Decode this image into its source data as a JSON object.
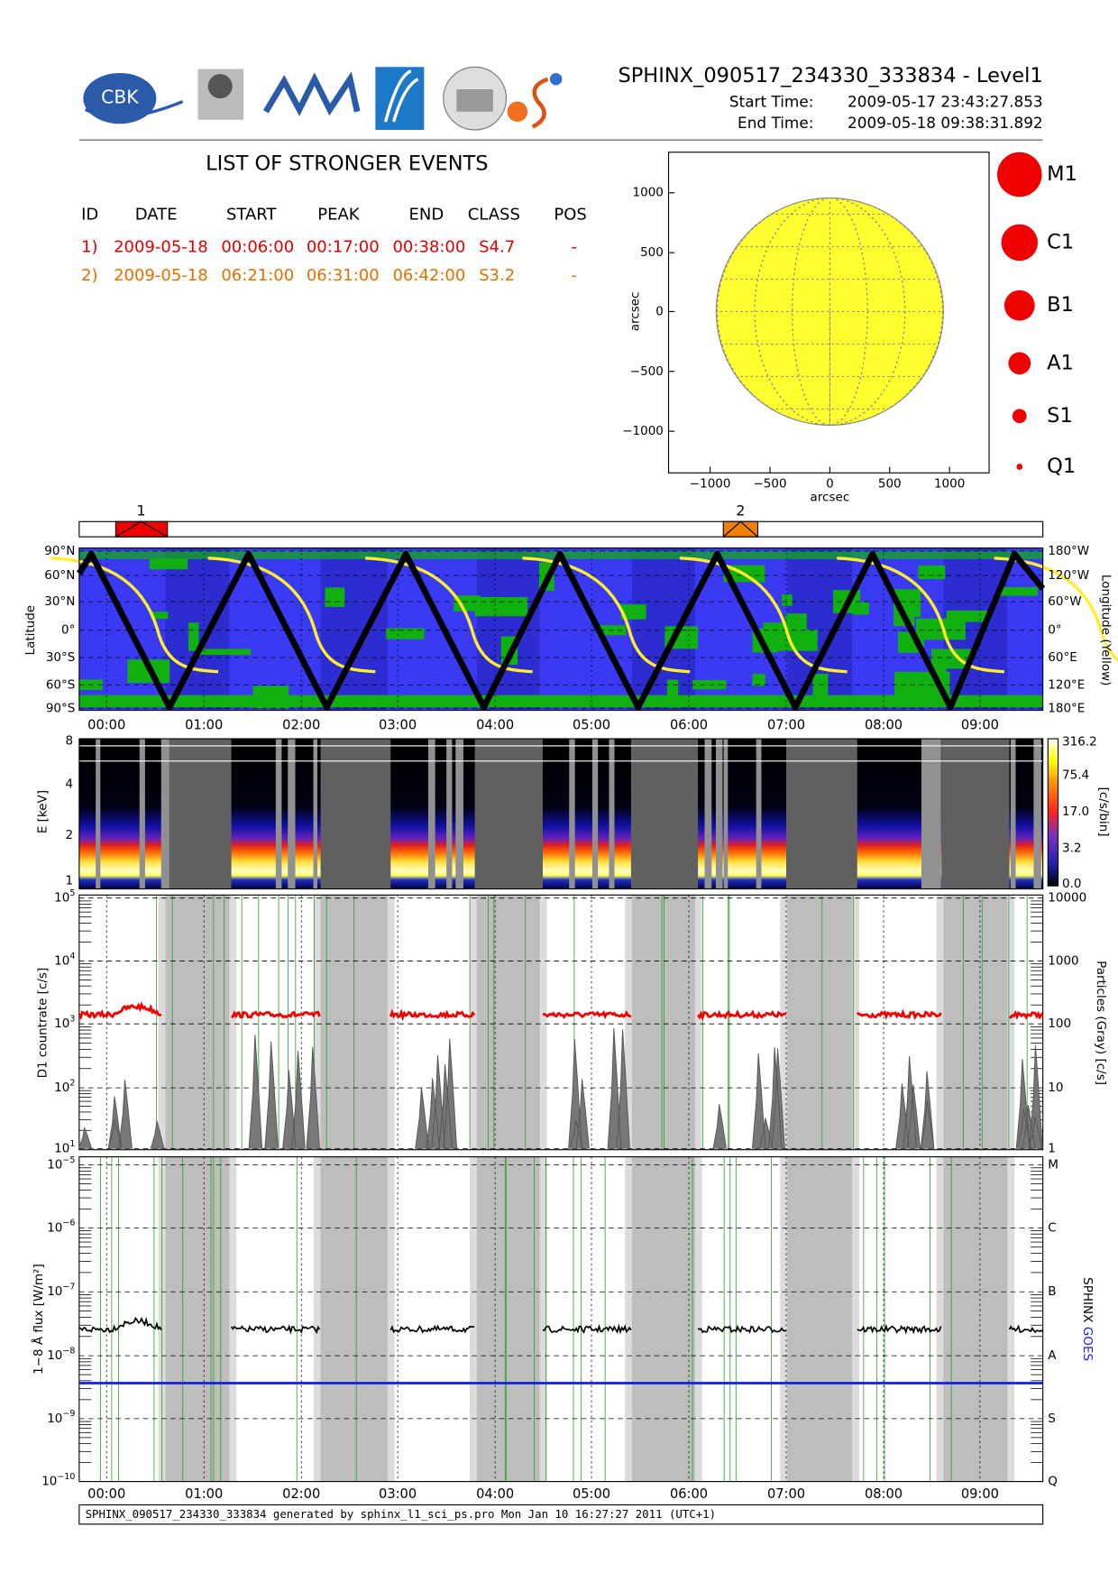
{
  "header": {
    "logo_text": "CBK",
    "title": "SPHINX_090517_234330_333834 - Level1",
    "start_label": "Start Time:",
    "start": "2009-05-17   23:43:27.853",
    "end_label": "End Time:",
    "end": "2009-05-18   09:38:31.892"
  },
  "events": {
    "title": "LIST OF STRONGER EVENTS",
    "columns": [
      "ID",
      "DATE",
      "START",
      "PEAK",
      "END",
      "CLASS",
      "POS"
    ],
    "rows": [
      [
        "1)",
        "2009-05-18",
        "00:06:00",
        "00:17:00",
        "00:38:00",
        "S4.7",
        "-"
      ],
      [
        "2)",
        "2009-05-18",
        "06:21:00",
        "06:31:00",
        "06:42:00",
        "S3.2",
        "-"
      ]
    ]
  },
  "sun_map": {
    "xlabel": "arcsec",
    "ylabel": "arcsec",
    "xticks": [
      "−1000",
      "−500",
      "0",
      "500",
      "1000"
    ],
    "yticks": [
      "1000",
      "500",
      "0",
      "−500",
      "−1000"
    ]
  },
  "size_legend": [
    "M1",
    "C1",
    "B1",
    "A1",
    "S1",
    "Q1"
  ],
  "event_bar": {
    "labels": [
      "1",
      "2"
    ]
  },
  "orbit": {
    "ylabel": "Latitude",
    "y2label": "Longitude (Yellow)",
    "yticks": [
      "90°N",
      "60°N",
      "30°N",
      "0°",
      "30°S",
      "60°S",
      "90°S"
    ],
    "y2ticks": [
      "180°W",
      "120°W",
      "60°W",
      "0°",
      "60°E",
      "120°E",
      "180°E"
    ]
  },
  "time_ticks": [
    "00:00",
    "01:00",
    "02:00",
    "03:00",
    "04:00",
    "05:00",
    "06:00",
    "07:00",
    "08:00",
    "09:00"
  ],
  "spectrum": {
    "ylabel": "E [keV]",
    "yticks": [
      "8",
      "4",
      "2",
      "1"
    ],
    "colorbar_label": "[c/s/bin]",
    "colorbar_ticks": [
      "316.2",
      "75.4",
      "17.0",
      "3.2",
      "0.0"
    ]
  },
  "countrate": {
    "ylabel": "D1 countrate [c/s]",
    "yticks": [
      {
        "base": "10",
        "exp": "5"
      },
      {
        "base": "10",
        "exp": "4"
      },
      {
        "base": "10",
        "exp": "3"
      },
      {
        "base": "10",
        "exp": "2"
      },
      {
        "base": "10",
        "exp": "1"
      }
    ],
    "y2label": "Particles (Gray) [c/s]",
    "y2ticks": [
      "10000",
      "1000",
      "100",
      "10",
      "1"
    ]
  },
  "flux": {
    "ylabel": "1−8 Å flux [W/m²]",
    "yticks": [
      {
        "base": "10",
        "exp": "−5"
      },
      {
        "base": "10",
        "exp": "−6"
      },
      {
        "base": "10",
        "exp": "−7"
      },
      {
        "base": "10",
        "exp": "−8"
      },
      {
        "base": "10",
        "exp": "−9"
      },
      {
        "base": "10",
        "exp": "−10"
      }
    ],
    "y2ticks": [
      "M",
      "C",
      "B",
      "A",
      "S",
      "Q"
    ],
    "y2label": [
      "SPHINX",
      "GOES"
    ]
  },
  "footer": "SPHINX_090517_234330_333834 generated by sphinx_l1_sci_ps.pro Mon Jan 10 16:27:27 2011 (UTC+1)"
}
